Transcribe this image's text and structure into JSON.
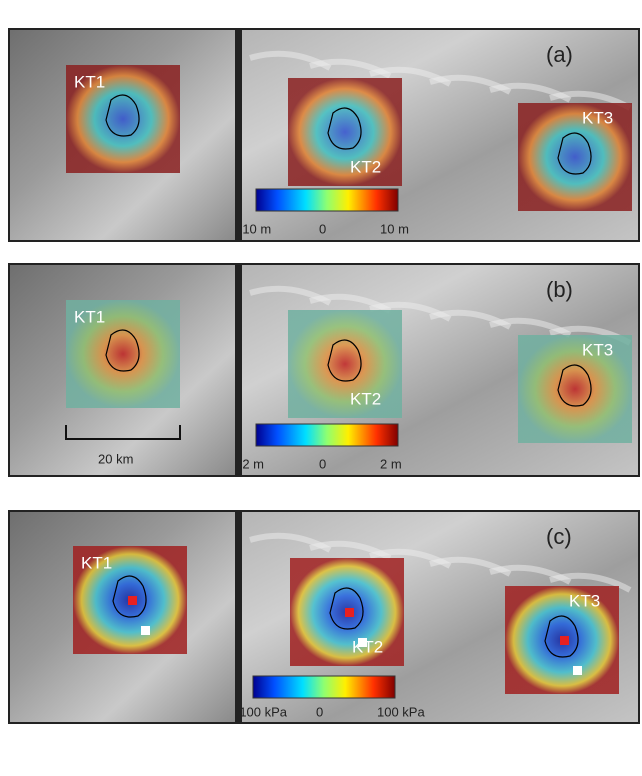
{
  "panels": [
    {
      "label": "(a)",
      "sites": [
        "KT1",
        "KT2",
        "KT3"
      ],
      "colorbar": [
        "-10 m",
        "0",
        "10 m"
      ]
    },
    {
      "label": "(b)",
      "sites": [
        "KT1",
        "KT2",
        "KT3"
      ],
      "colorbar": [
        "-2 m",
        "0",
        "2 m"
      ],
      "scale_bar": "20 km"
    },
    {
      "label": "(c)",
      "sites": [
        "KT1",
        "KT2",
        "KT3"
      ],
      "colorbar": [
        "-100 kPa",
        "0",
        "100 kPa"
      ]
    }
  ]
}
